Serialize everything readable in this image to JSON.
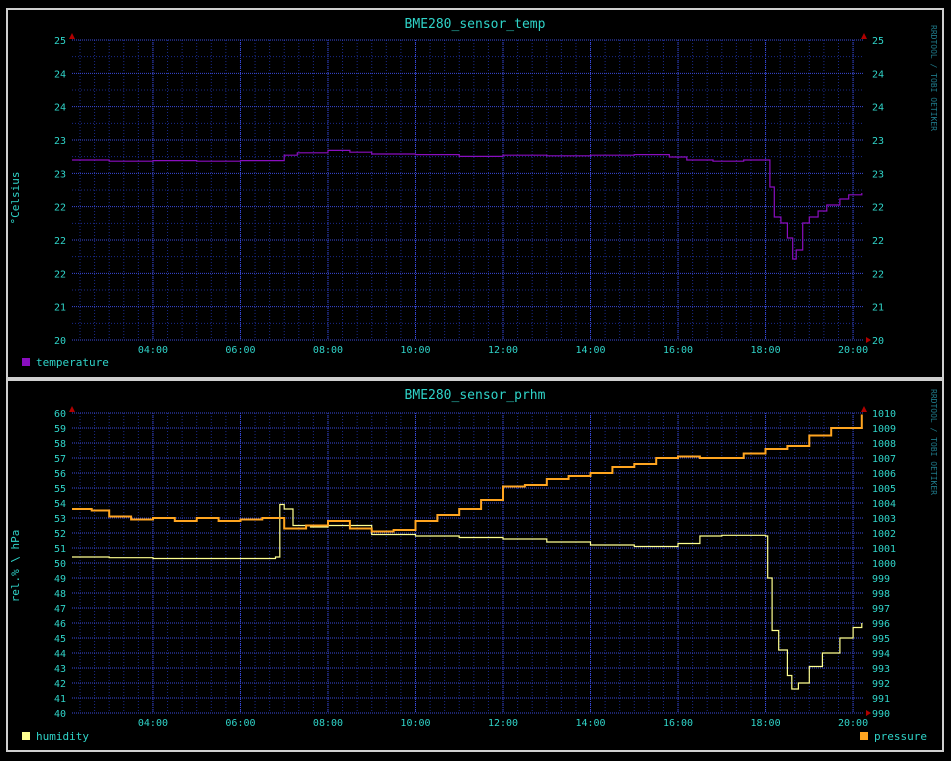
{
  "chart_data": [
    {
      "type": "line",
      "title": "BME280_sensor_temp",
      "ylabel": "°Celsius",
      "vertical_label": "RRDTOOL / TOBI OETIKER",
      "x_ticks": [
        "04:00",
        "06:00",
        "08:00",
        "10:00",
        "12:00",
        "14:00",
        "16:00",
        "18:00",
        "20:00"
      ],
      "x_range_hours": [
        2.15,
        20.25
      ],
      "y_range": [
        20,
        25
      ],
      "y_tick_labels": [
        "20",
        "21",
        "22",
        "22",
        "22",
        "23",
        "23",
        "24",
        "24",
        "25"
      ],
      "right_tick_labels": [
        "20",
        "21",
        "22",
        "22",
        "22",
        "23",
        "23",
        "24",
        "24",
        "25"
      ],
      "grid": true,
      "legend": "bottom-left",
      "series": [
        {
          "name": "temperature",
          "color": "#8a0ec0",
          "axis": "left",
          "points": [
            [
              2.15,
              23.0
            ],
            [
              3.0,
              22.98
            ],
            [
              4.0,
              22.99
            ],
            [
              5.0,
              22.98
            ],
            [
              6.0,
              22.99
            ],
            [
              6.8,
              22.99
            ],
            [
              7.0,
              23.08
            ],
            [
              7.3,
              23.12
            ],
            [
              8.0,
              23.16
            ],
            [
              8.5,
              23.13
            ],
            [
              9.0,
              23.1
            ],
            [
              10.0,
              23.09
            ],
            [
              11.0,
              23.06
            ],
            [
              12.0,
              23.08
            ],
            [
              13.0,
              23.07
            ],
            [
              14.0,
              23.08
            ],
            [
              15.0,
              23.09
            ],
            [
              15.8,
              23.05
            ],
            [
              16.2,
              23.0
            ],
            [
              16.8,
              22.98
            ],
            [
              17.5,
              23.0
            ],
            [
              18.0,
              23.0
            ],
            [
              18.1,
              22.55
            ],
            [
              18.2,
              22.05
            ],
            [
              18.35,
              21.95
            ],
            [
              18.5,
              21.7
            ],
            [
              18.62,
              21.35
            ],
            [
              18.7,
              21.5
            ],
            [
              18.85,
              21.95
            ],
            [
              19.0,
              22.05
            ],
            [
              19.2,
              22.15
            ],
            [
              19.4,
              22.25
            ],
            [
              19.7,
              22.35
            ],
            [
              19.9,
              22.42
            ],
            [
              20.2,
              22.45
            ]
          ]
        }
      ]
    },
    {
      "type": "line",
      "title": "BME280_sensor_prhm",
      "ylabel": "rel.% \\ hPa",
      "vertical_label": "RRDTOOL / TOBI OETIKER",
      "x_ticks": [
        "04:00",
        "06:00",
        "08:00",
        "10:00",
        "12:00",
        "14:00",
        "16:00",
        "18:00",
        "20:00"
      ],
      "x_range_hours": [
        2.15,
        20.25
      ],
      "y_range": [
        40,
        60
      ],
      "y_tick_labels": [
        "40",
        "41",
        "42",
        "43",
        "44",
        "45",
        "46",
        "47",
        "48",
        "49",
        "50",
        "51",
        "52",
        "53",
        "54",
        "55",
        "56",
        "57",
        "58",
        "59",
        "60"
      ],
      "right_tick_labels": [
        "990",
        "991",
        "992",
        "993",
        "994",
        "995",
        "996",
        "997",
        "998",
        "999",
        "1000",
        "1001",
        "1002",
        "1003",
        "1004",
        "1005",
        "1006",
        "1007",
        "1008",
        "1009",
        "1010"
      ],
      "grid": true,
      "legend": "bottom",
      "series": [
        {
          "name": "humidity",
          "color": "#ffff90",
          "axis": "left",
          "points": [
            [
              2.15,
              50.4
            ],
            [
              3.0,
              50.35
            ],
            [
              4.0,
              50.3
            ],
            [
              5.0,
              50.3
            ],
            [
              6.0,
              50.3
            ],
            [
              6.8,
              50.4
            ],
            [
              6.9,
              53.9
            ],
            [
              7.0,
              53.6
            ],
            [
              7.2,
              52.5
            ],
            [
              7.6,
              52.4
            ],
            [
              8.0,
              52.5
            ],
            [
              9.0,
              51.9
            ],
            [
              10.0,
              51.8
            ],
            [
              11.0,
              51.7
            ],
            [
              12.0,
              51.6
            ],
            [
              13.0,
              51.4
            ],
            [
              14.0,
              51.2
            ],
            [
              15.0,
              51.1
            ],
            [
              15.7,
              51.1
            ],
            [
              16.0,
              51.3
            ],
            [
              16.5,
              51.8
            ],
            [
              17.0,
              51.85
            ],
            [
              17.5,
              51.85
            ],
            [
              18.0,
              51.8
            ],
            [
              18.05,
              49.0
            ],
            [
              18.15,
              45.5
            ],
            [
              18.3,
              44.2
            ],
            [
              18.5,
              42.5
            ],
            [
              18.6,
              41.6
            ],
            [
              18.75,
              42.0
            ],
            [
              19.0,
              43.1
            ],
            [
              19.3,
              44.0
            ],
            [
              19.7,
              45.0
            ],
            [
              20.0,
              45.7
            ],
            [
              20.2,
              46.0
            ]
          ]
        },
        {
          "name": "pressure",
          "color": "#ffa520",
          "axis": "right",
          "points": [
            [
              2.15,
              1003.6
            ],
            [
              2.6,
              1003.5
            ],
            [
              3.0,
              1003.1
            ],
            [
              3.5,
              1002.9
            ],
            [
              4.0,
              1003.0
            ],
            [
              4.5,
              1002.8
            ],
            [
              5.0,
              1003.0
            ],
            [
              5.5,
              1002.8
            ],
            [
              6.0,
              1002.9
            ],
            [
              6.5,
              1003.0
            ],
            [
              7.0,
              1002.3
            ],
            [
              7.5,
              1002.5
            ],
            [
              8.0,
              1002.8
            ],
            [
              8.5,
              1002.3
            ],
            [
              9.0,
              1002.1
            ],
            [
              9.5,
              1002.2
            ],
            [
              10.0,
              1002.8
            ],
            [
              10.5,
              1003.2
            ],
            [
              11.0,
              1003.6
            ],
            [
              11.5,
              1004.2
            ],
            [
              12.0,
              1005.1
            ],
            [
              12.5,
              1005.2
            ],
            [
              13.0,
              1005.6
            ],
            [
              13.5,
              1005.8
            ],
            [
              14.0,
              1006.0
            ],
            [
              14.5,
              1006.4
            ],
            [
              15.0,
              1006.6
            ],
            [
              15.5,
              1007.0
            ],
            [
              16.0,
              1007.1
            ],
            [
              16.5,
              1007.0
            ],
            [
              17.0,
              1007.0
            ],
            [
              17.5,
              1007.3
            ],
            [
              18.0,
              1007.6
            ],
            [
              18.5,
              1007.8
            ],
            [
              19.0,
              1008.5
            ],
            [
              19.5,
              1009.0
            ],
            [
              20.2,
              1009.9
            ]
          ]
        }
      ]
    }
  ]
}
